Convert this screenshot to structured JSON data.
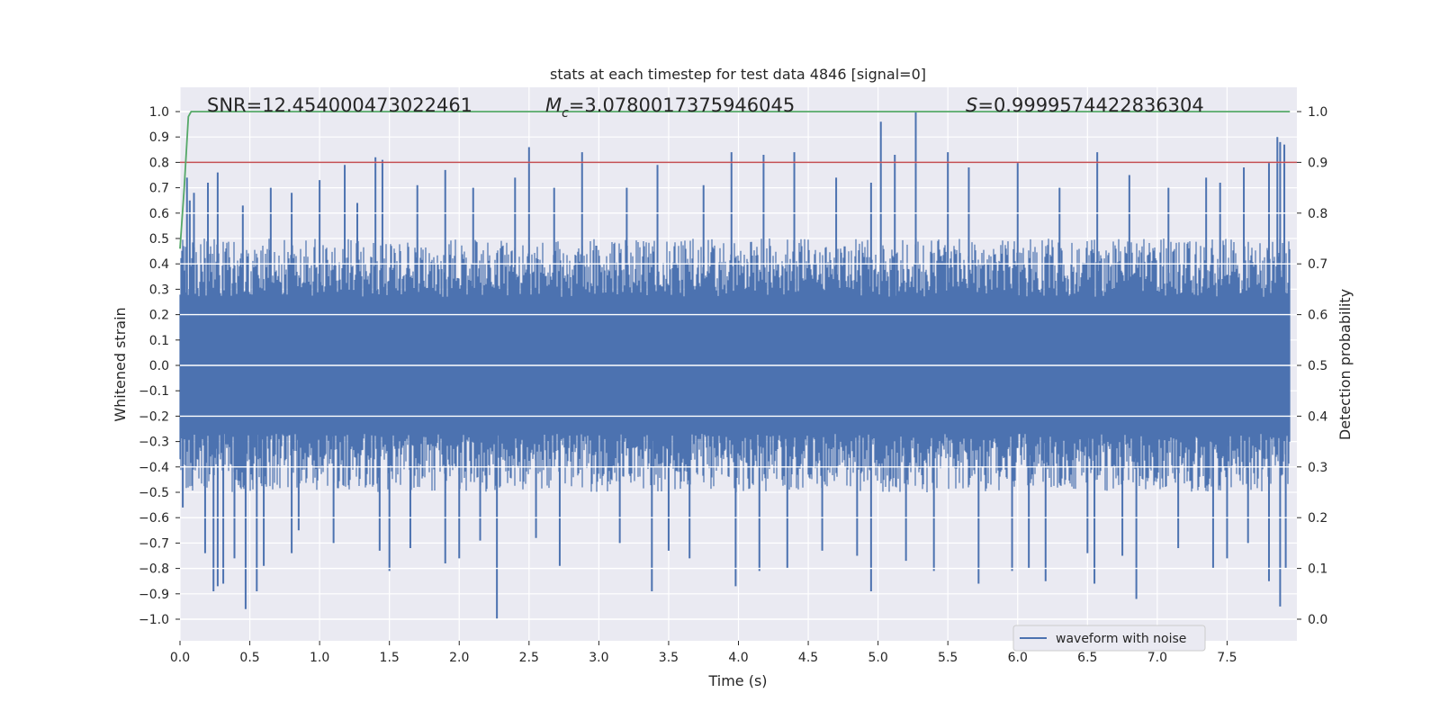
{
  "chart_data": {
    "type": "line",
    "title": "stats at each timestep for test data 4846 [signal=0]",
    "xlabel": "Time (s)",
    "ylabel_left": "Whitened strain",
    "ylabel_right": "Detection probability",
    "xlim": [
      0.0,
      8.0
    ],
    "ylim_left": [
      -1.0,
      1.0
    ],
    "ylim_right": [
      0.0,
      1.0
    ],
    "x_ticks": [
      "0.0",
      "0.5",
      "1.0",
      "1.5",
      "2.0",
      "2.5",
      "3.0",
      "3.5",
      "4.0",
      "4.5",
      "5.0",
      "5.5",
      "6.0",
      "6.5",
      "7.0",
      "7.5"
    ],
    "y_ticks_left": [
      "1.0",
      "0.9",
      "0.8",
      "0.7",
      "0.6",
      "0.5",
      "0.4",
      "0.3",
      "0.2",
      "0.1",
      "0.0",
      "−0.1",
      "−0.2",
      "−0.3",
      "−0.4",
      "−0.5",
      "−0.6",
      "−0.7",
      "−0.8",
      "−0.9",
      "−1.0"
    ],
    "y_ticks_right": [
      "1.0",
      "0.9",
      "0.8",
      "0.7",
      "0.6",
      "0.5",
      "0.4",
      "0.3",
      "0.2",
      "0.1",
      "0.0"
    ],
    "grid": true,
    "legend": {
      "label": "waveform with noise",
      "placement": "lower-right"
    },
    "annotations": {
      "snr": "SNR=12.454000473022461",
      "mc_symbol": "M",
      "mc_sub": "c",
      "mc_value": "=3.0780017375946045",
      "s_symbol": "S",
      "s_value": "=0.9999574422836304"
    },
    "threshold": {
      "value": 0.9,
      "axis": "right",
      "color": "#c44e52"
    },
    "detection_probability": {
      "color": "#55a868",
      "x": [
        0.0,
        0.03,
        0.06,
        0.08,
        7.95
      ],
      "y": [
        0.73,
        0.85,
        0.99,
        1.0,
        1.0
      ]
    },
    "waveform": {
      "name": "waveform with noise",
      "color": "#4c72b0",
      "duration_s": 7.95,
      "core_amplitude": 0.2,
      "typical_peak": [
        0.27,
        0.5
      ],
      "extreme_peaks_pos": [
        [
          0.05,
          0.74
        ],
        [
          0.07,
          0.65
        ],
        [
          0.1,
          0.68
        ],
        [
          0.2,
          0.72
        ],
        [
          0.27,
          0.76
        ],
        [
          0.45,
          0.63
        ],
        [
          0.65,
          0.7
        ],
        [
          0.8,
          0.68
        ],
        [
          1.0,
          0.73
        ],
        [
          1.18,
          0.79
        ],
        [
          1.27,
          0.64
        ],
        [
          1.4,
          0.82
        ],
        [
          1.45,
          0.81
        ],
        [
          1.7,
          0.71
        ],
        [
          1.9,
          0.77
        ],
        [
          2.1,
          0.7
        ],
        [
          2.4,
          0.74
        ],
        [
          2.5,
          0.86
        ],
        [
          2.68,
          0.7
        ],
        [
          2.88,
          0.84
        ],
        [
          3.2,
          0.7
        ],
        [
          3.42,
          0.79
        ],
        [
          3.75,
          0.71
        ],
        [
          3.95,
          0.84
        ],
        [
          4.18,
          0.83
        ],
        [
          4.4,
          0.84
        ],
        [
          4.7,
          0.74
        ],
        [
          4.95,
          0.72
        ],
        [
          5.02,
          0.96
        ],
        [
          5.12,
          0.83
        ],
        [
          5.27,
          1.0
        ],
        [
          5.5,
          0.84
        ],
        [
          5.65,
          0.78
        ],
        [
          6.0,
          0.8
        ],
        [
          6.3,
          0.7
        ],
        [
          6.57,
          0.84
        ],
        [
          6.8,
          0.75
        ],
        [
          7.08,
          0.7
        ],
        [
          7.35,
          0.74
        ],
        [
          7.45,
          0.72
        ],
        [
          7.62,
          0.78
        ],
        [
          7.8,
          0.8
        ],
        [
          7.86,
          0.9
        ],
        [
          7.88,
          0.88
        ],
        [
          7.91,
          0.87
        ]
      ],
      "extreme_peaks_neg": [
        [
          0.02,
          -0.56
        ],
        [
          0.18,
          -0.74
        ],
        [
          0.24,
          -0.89
        ],
        [
          0.27,
          -0.87
        ],
        [
          0.31,
          -0.86
        ],
        [
          0.39,
          -0.76
        ],
        [
          0.47,
          -0.96
        ],
        [
          0.55,
          -0.89
        ],
        [
          0.6,
          -0.79
        ],
        [
          0.8,
          -0.74
        ],
        [
          0.85,
          -0.65
        ],
        [
          1.1,
          -0.7
        ],
        [
          1.43,
          -0.73
        ],
        [
          1.5,
          -0.81
        ],
        [
          1.65,
          -0.72
        ],
        [
          1.9,
          -0.78
        ],
        [
          2.0,
          -0.76
        ],
        [
          2.15,
          -0.69
        ],
        [
          2.27,
          -1.0
        ],
        [
          2.55,
          -0.68
        ],
        [
          2.72,
          -0.79
        ],
        [
          3.15,
          -0.7
        ],
        [
          3.38,
          -0.89
        ],
        [
          3.5,
          -0.73
        ],
        [
          3.65,
          -0.76
        ],
        [
          3.98,
          -0.87
        ],
        [
          4.15,
          -0.81
        ],
        [
          4.35,
          -0.8
        ],
        [
          4.6,
          -0.73
        ],
        [
          4.85,
          -0.75
        ],
        [
          4.95,
          -0.89
        ],
        [
          5.2,
          -0.77
        ],
        [
          5.4,
          -0.81
        ],
        [
          5.72,
          -0.86
        ],
        [
          5.96,
          -0.81
        ],
        [
          6.08,
          -0.8
        ],
        [
          6.2,
          -0.85
        ],
        [
          6.5,
          -0.74
        ],
        [
          6.55,
          -0.86
        ],
        [
          6.75,
          -0.75
        ],
        [
          6.85,
          -0.92
        ],
        [
          7.15,
          -0.72
        ],
        [
          7.4,
          -0.8
        ],
        [
          7.5,
          -0.76
        ],
        [
          7.65,
          -0.7
        ],
        [
          7.8,
          -0.85
        ],
        [
          7.88,
          -0.95
        ],
        [
          7.92,
          -0.8
        ]
      ]
    }
  }
}
